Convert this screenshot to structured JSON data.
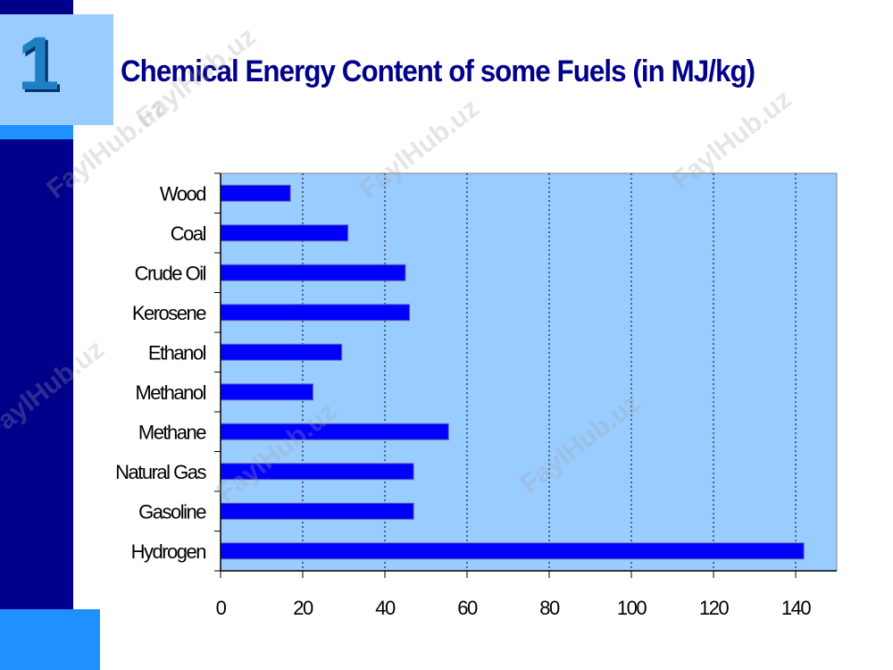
{
  "slide": {
    "number": "1",
    "title": "Chemical Energy Content of some Fuels (in MJ/kg)",
    "watermark": "FaylHub.uz"
  },
  "colors": {
    "left_band": "#00008b",
    "number_box": "#99ccff",
    "accent_blue": "#1e90ff",
    "plot_background": "#99ccff",
    "bar_fill": "#0000ff",
    "title_text": "#00008b"
  },
  "chart_data": {
    "type": "bar",
    "orientation": "horizontal",
    "categories": [
      "Wood",
      "Coal",
      "Crude Oil",
      "Kerosene",
      "Ethanol",
      "Methanol",
      "Methane",
      "Natural Gas",
      "Gasoline",
      "Hydrogen"
    ],
    "values": [
      17,
      31,
      45,
      46,
      29.5,
      22.5,
      55.5,
      47,
      47,
      142
    ],
    "xlim": [
      0,
      150
    ],
    "xticks": [
      0,
      20,
      40,
      60,
      80,
      100,
      120,
      140
    ],
    "grid": "vertical dotted",
    "legend": "none",
    "title": "Chemical Energy Content of some Fuels (in MJ/kg)"
  }
}
